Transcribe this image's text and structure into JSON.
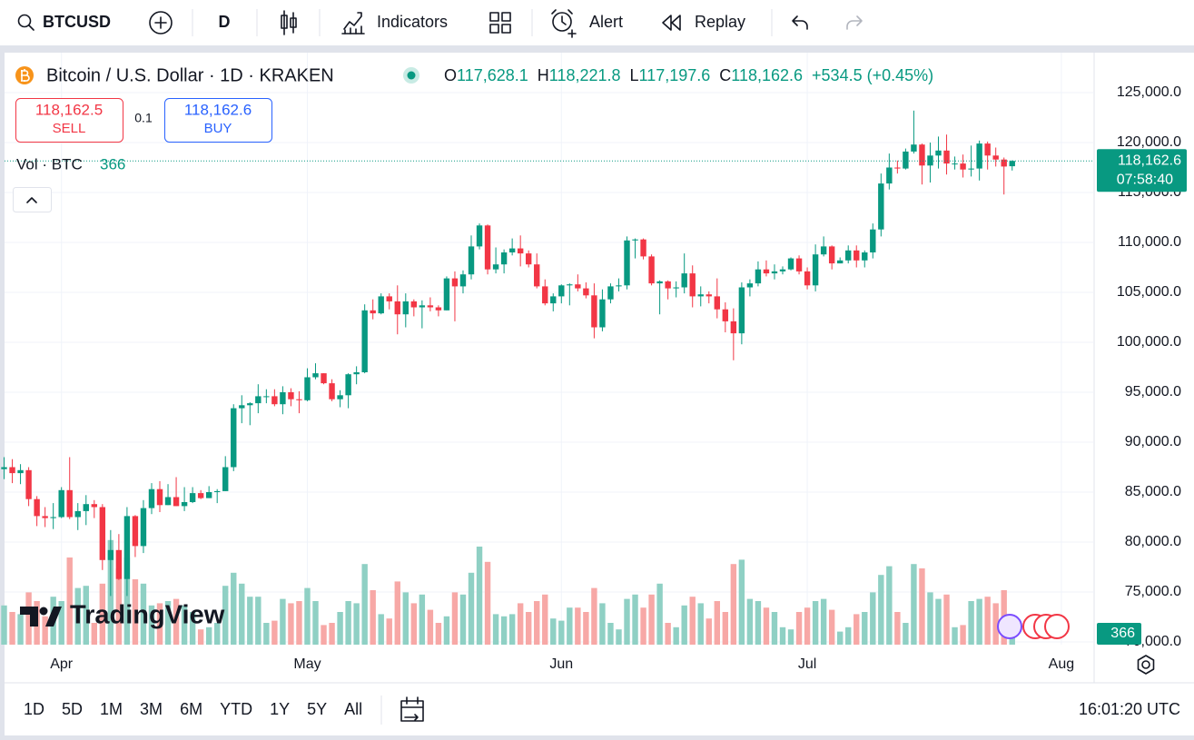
{
  "toolbar": {
    "symbol": "BTCUSD",
    "interval": "D",
    "indicators": "Indicators",
    "alert": "Alert",
    "replay": "Replay"
  },
  "legend": {
    "title": "Bitcoin / U.S. Dollar · 1D · KRAKEN",
    "ohlc": [
      {
        "key": "O",
        "value": "117,628.1"
      },
      {
        "key": "H",
        "value": "118,221.8"
      },
      {
        "key": "L",
        "value": "117,197.6"
      },
      {
        "key": "C",
        "value": "118,162.6"
      }
    ],
    "change": "+534.5 (+0.45%)"
  },
  "trade": {
    "sell_price": "118,162.5",
    "sell": "SELL",
    "spread": "0.1",
    "buy_price": "118,162.6",
    "buy": "BUY"
  },
  "volume_legend": "Vol · BTC",
  "price_badge": {
    "price": "118,162.6",
    "countdown": "07:58:40"
  },
  "logo": "TradingView",
  "ranges": [
    "1D",
    "5D",
    "1M",
    "3M",
    "6M",
    "YTD",
    "1Y",
    "5Y",
    "All"
  ],
  "clock": "16:01:20 UTC",
  "chart_data": {
    "type": "candlestick",
    "up_color": "#089981",
    "down_color": "#f23645",
    "up_volume_color": "#8fd0c4",
    "down_volume_color": "#f7a8a6",
    "xlim": [
      -0.5,
      133
    ],
    "ylim": [
      70000,
      128800
    ],
    "vlim": [
      0,
      5000
    ],
    "grid": true,
    "xticks": [
      {
        "value": 7,
        "label": "Apr"
      },
      {
        "value": 37,
        "label": "May"
      },
      {
        "value": 68,
        "label": "Jun"
      },
      {
        "value": 98,
        "label": "Jul"
      },
      {
        "value": 129,
        "label": "Aug"
      }
    ],
    "yticks": [
      {
        "value": 70000,
        "label": "70,000.0"
      },
      {
        "value": 75000,
        "label": "75,000.0"
      },
      {
        "value": 80000,
        "label": "80,000.0"
      },
      {
        "value": 85000,
        "label": "85,000.0"
      },
      {
        "value": 90000,
        "label": "90,000.0"
      },
      {
        "value": 95000,
        "label": "95,000.0"
      },
      {
        "value": 100000,
        "label": "100,000.0"
      },
      {
        "value": 105000,
        "label": "105,000.0"
      },
      {
        "value": 110000,
        "label": "110,000.0"
      },
      {
        "value": 115000,
        "label": "115,000.0"
      },
      {
        "value": 120000,
        "label": "120,000.0"
      },
      {
        "value": 125000,
        "label": "125,000.0"
      }
    ],
    "open": [
      87300,
      87500,
      86900,
      87200,
      84300,
      82600,
      82400,
      82500,
      85200,
      82500,
      83100,
      83800,
      83500,
      78200,
      79200,
      76300,
      82600,
      79600,
      83400,
      85300,
      83700,
      84500,
      83600,
      84000,
      84900,
      84400,
      85000,
      85100,
      87500,
      93400,
      93700,
      93900,
      94600,
      94600,
      93800,
      95000,
      94300,
      94200,
      96500,
      96900,
      95900,
      94300,
      94700,
      96800,
      97000,
      103200,
      102900,
      104600,
      104100,
      102800,
      104100,
      103500,
      103700,
      103500,
      103200,
      106400,
      105600,
      106800,
      109600,
      111700,
      107300,
      107800,
      109000,
      109400,
      108900,
      107800,
      105600,
      103900,
      104600,
      105700,
      105800,
      105400,
      104700,
      101500,
      104300,
      105600,
      105700,
      110200,
      110300,
      108600,
      105900,
      106100,
      105400,
      105500,
      106900,
      104600,
      104800,
      104600,
      103300,
      102100,
      100900,
      105500,
      105900,
      107300,
      106900,
      107100,
      107300,
      108400,
      107100,
      105700,
      108800,
      109600,
      107900,
      108200,
      109200,
      108200,
      109000,
      111300,
      115900,
      117500,
      117400,
      119100,
      119800,
      117700,
      118700,
      119200,
      117900,
      117900,
      117300,
      117400,
      119900,
      118700,
      118300,
      117628.1
    ],
    "high": [
      88500,
      88300,
      87800,
      87500,
      84600,
      83500,
      83900,
      85500,
      88500,
      83900,
      84700,
      84200,
      83800,
      81200,
      80800,
      83500,
      82700,
      84200,
      85900,
      86100,
      85800,
      86500,
      85500,
      85500,
      85200,
      85600,
      85300,
      88600,
      93800,
      94700,
      94000,
      95800,
      95300,
      95300,
      95600,
      95400,
      95100,
      97400,
      97900,
      96900,
      96300,
      95200,
      96900,
      97600,
      103800,
      104300,
      104900,
      104900,
      105700,
      104900,
      104300,
      104200,
      104500,
      103700,
      106600,
      107100,
      107200,
      110700,
      111900,
      111800,
      109500,
      109300,
      110400,
      110700,
      109200,
      108900,
      106300,
      104900,
      105800,
      105900,
      106800,
      106000,
      105900,
      105300,
      105900,
      106400,
      110600,
      110400,
      110400,
      108800,
      106200,
      106200,
      106100,
      108900,
      107700,
      105600,
      105100,
      106400,
      104000,
      103400,
      106000,
      106300,
      108100,
      108200,
      107800,
      107600,
      108500,
      108700,
      107500,
      109800,
      110600,
      109700,
      108500,
      109700,
      109700,
      109200,
      111900,
      116900,
      118900,
      118200,
      119400,
      123200,
      119900,
      120000,
      120600,
      120800,
      118600,
      118800,
      119700,
      120200,
      120100,
      119500,
      118500,
      118221.8
    ],
    "low": [
      86300,
      85900,
      85800,
      83600,
      81600,
      81500,
      81300,
      82400,
      82300,
      81200,
      81700,
      82400,
      77200,
      74600,
      76200,
      74600,
      78500,
      78900,
      82800,
      83000,
      83700,
      83600,
      83100,
      83900,
      84300,
      84400,
      83900,
      85100,
      87100,
      91900,
      91700,
      92900,
      93900,
      93600,
      92800,
      93600,
      92900,
      94100,
      96300,
      95800,
      94100,
      93500,
      93400,
      95800,
      96900,
      102300,
      102800,
      103300,
      100800,
      101500,
      102600,
      101400,
      103100,
      102600,
      103200,
      102100,
      104900,
      106300,
      109300,
      106800,
      106900,
      106900,
      108700,
      107600,
      107500,
      105400,
      103700,
      103100,
      103900,
      103700,
      105100,
      104400,
      100400,
      101100,
      103900,
      105100,
      105300,
      108400,
      108300,
      105700,
      102800,
      104300,
      104500,
      104900,
      103500,
      103600,
      103900,
      102400,
      101000,
      98200,
      99800,
      104600,
      105600,
      106600,
      106300,
      106800,
      107200,
      106800,
      105300,
      105100,
      108600,
      107300,
      107900,
      107900,
      107500,
      107500,
      108400,
      110600,
      115300,
      116900,
      117300,
      118900,
      115800,
      116000,
      117400,
      116800,
      117300,
      116500,
      116600,
      116200,
      117300,
      117600,
      114800,
      117197.6
    ],
    "close": [
      87500,
      86900,
      87200,
      84300,
      82600,
      82400,
      82500,
      85200,
      82500,
      83100,
      83800,
      83500,
      78200,
      79200,
      76300,
      82600,
      79600,
      83400,
      85300,
      83700,
      84500,
      83600,
      84000,
      84900,
      84400,
      85000,
      85100,
      87500,
      93400,
      93700,
      93900,
      94600,
      94600,
      93800,
      95000,
      94300,
      94200,
      96500,
      96900,
      95900,
      94300,
      94700,
      96800,
      97000,
      103200,
      102900,
      104600,
      104100,
      102800,
      104100,
      103500,
      103700,
      103500,
      103200,
      106400,
      105600,
      106800,
      109600,
      111700,
      107300,
      107800,
      109000,
      109400,
      108900,
      107800,
      105600,
      103900,
      104600,
      105700,
      105800,
      105400,
      104700,
      101500,
      104300,
      105600,
      105700,
      110200,
      110300,
      108600,
      105900,
      106100,
      105400,
      105500,
      106900,
      104600,
      104800,
      104600,
      103300,
      102100,
      100900,
      105500,
      105900,
      107300,
      106900,
      107100,
      107300,
      108400,
      107100,
      105700,
      108800,
      109600,
      107900,
      108200,
      109200,
      108200,
      109000,
      111300,
      115900,
      117500,
      117400,
      119100,
      119800,
      117700,
      118700,
      119200,
      117900,
      117900,
      117300,
      117400,
      119900,
      118700,
      118300,
      117600,
      118162.6
    ],
    "volume": [
      1800,
      1500,
      1400,
      2400,
      2000,
      1300,
      2200,
      2000,
      4000,
      2600,
      2700,
      1000,
      2800,
      4800,
      3500,
      4000,
      3000,
      2800,
      1800,
      1900,
      2000,
      2100,
      1800,
      1500,
      700,
      800,
      1000,
      2700,
      3300,
      2800,
      2200,
      2200,
      1000,
      1100,
      2100,
      1900,
      2000,
      2600,
      2000,
      900,
      1000,
      1500,
      2000,
      1900,
      3700,
      2500,
      1400,
      1200,
      2900,
      2400,
      1900,
      2300,
      1600,
      1000,
      1300,
      2400,
      2300,
      3300,
      4500,
      3800,
      1400,
      1300,
      1400,
      1900,
      1500,
      2000,
      2300,
      1200,
      1100,
      1700,
      1700,
      1500,
      2600,
      1900,
      1000,
      700,
      2100,
      2300,
      1700,
      2300,
      2800,
      1000,
      800,
      1800,
      2200,
      1900,
      1200,
      2000,
      1500,
      3700,
      3900,
      2100,
      2000,
      1700,
      1500,
      800,
      700,
      1500,
      1700,
      2000,
      2100,
      1600,
      600,
      800,
      1400,
      1500,
      2400,
      3200,
      3600,
      1500,
      1000,
      3700,
      3500,
      2400,
      2100,
      2300,
      800,
      900,
      2000,
      2100,
      2200,
      1900,
      2500,
      366
    ]
  }
}
